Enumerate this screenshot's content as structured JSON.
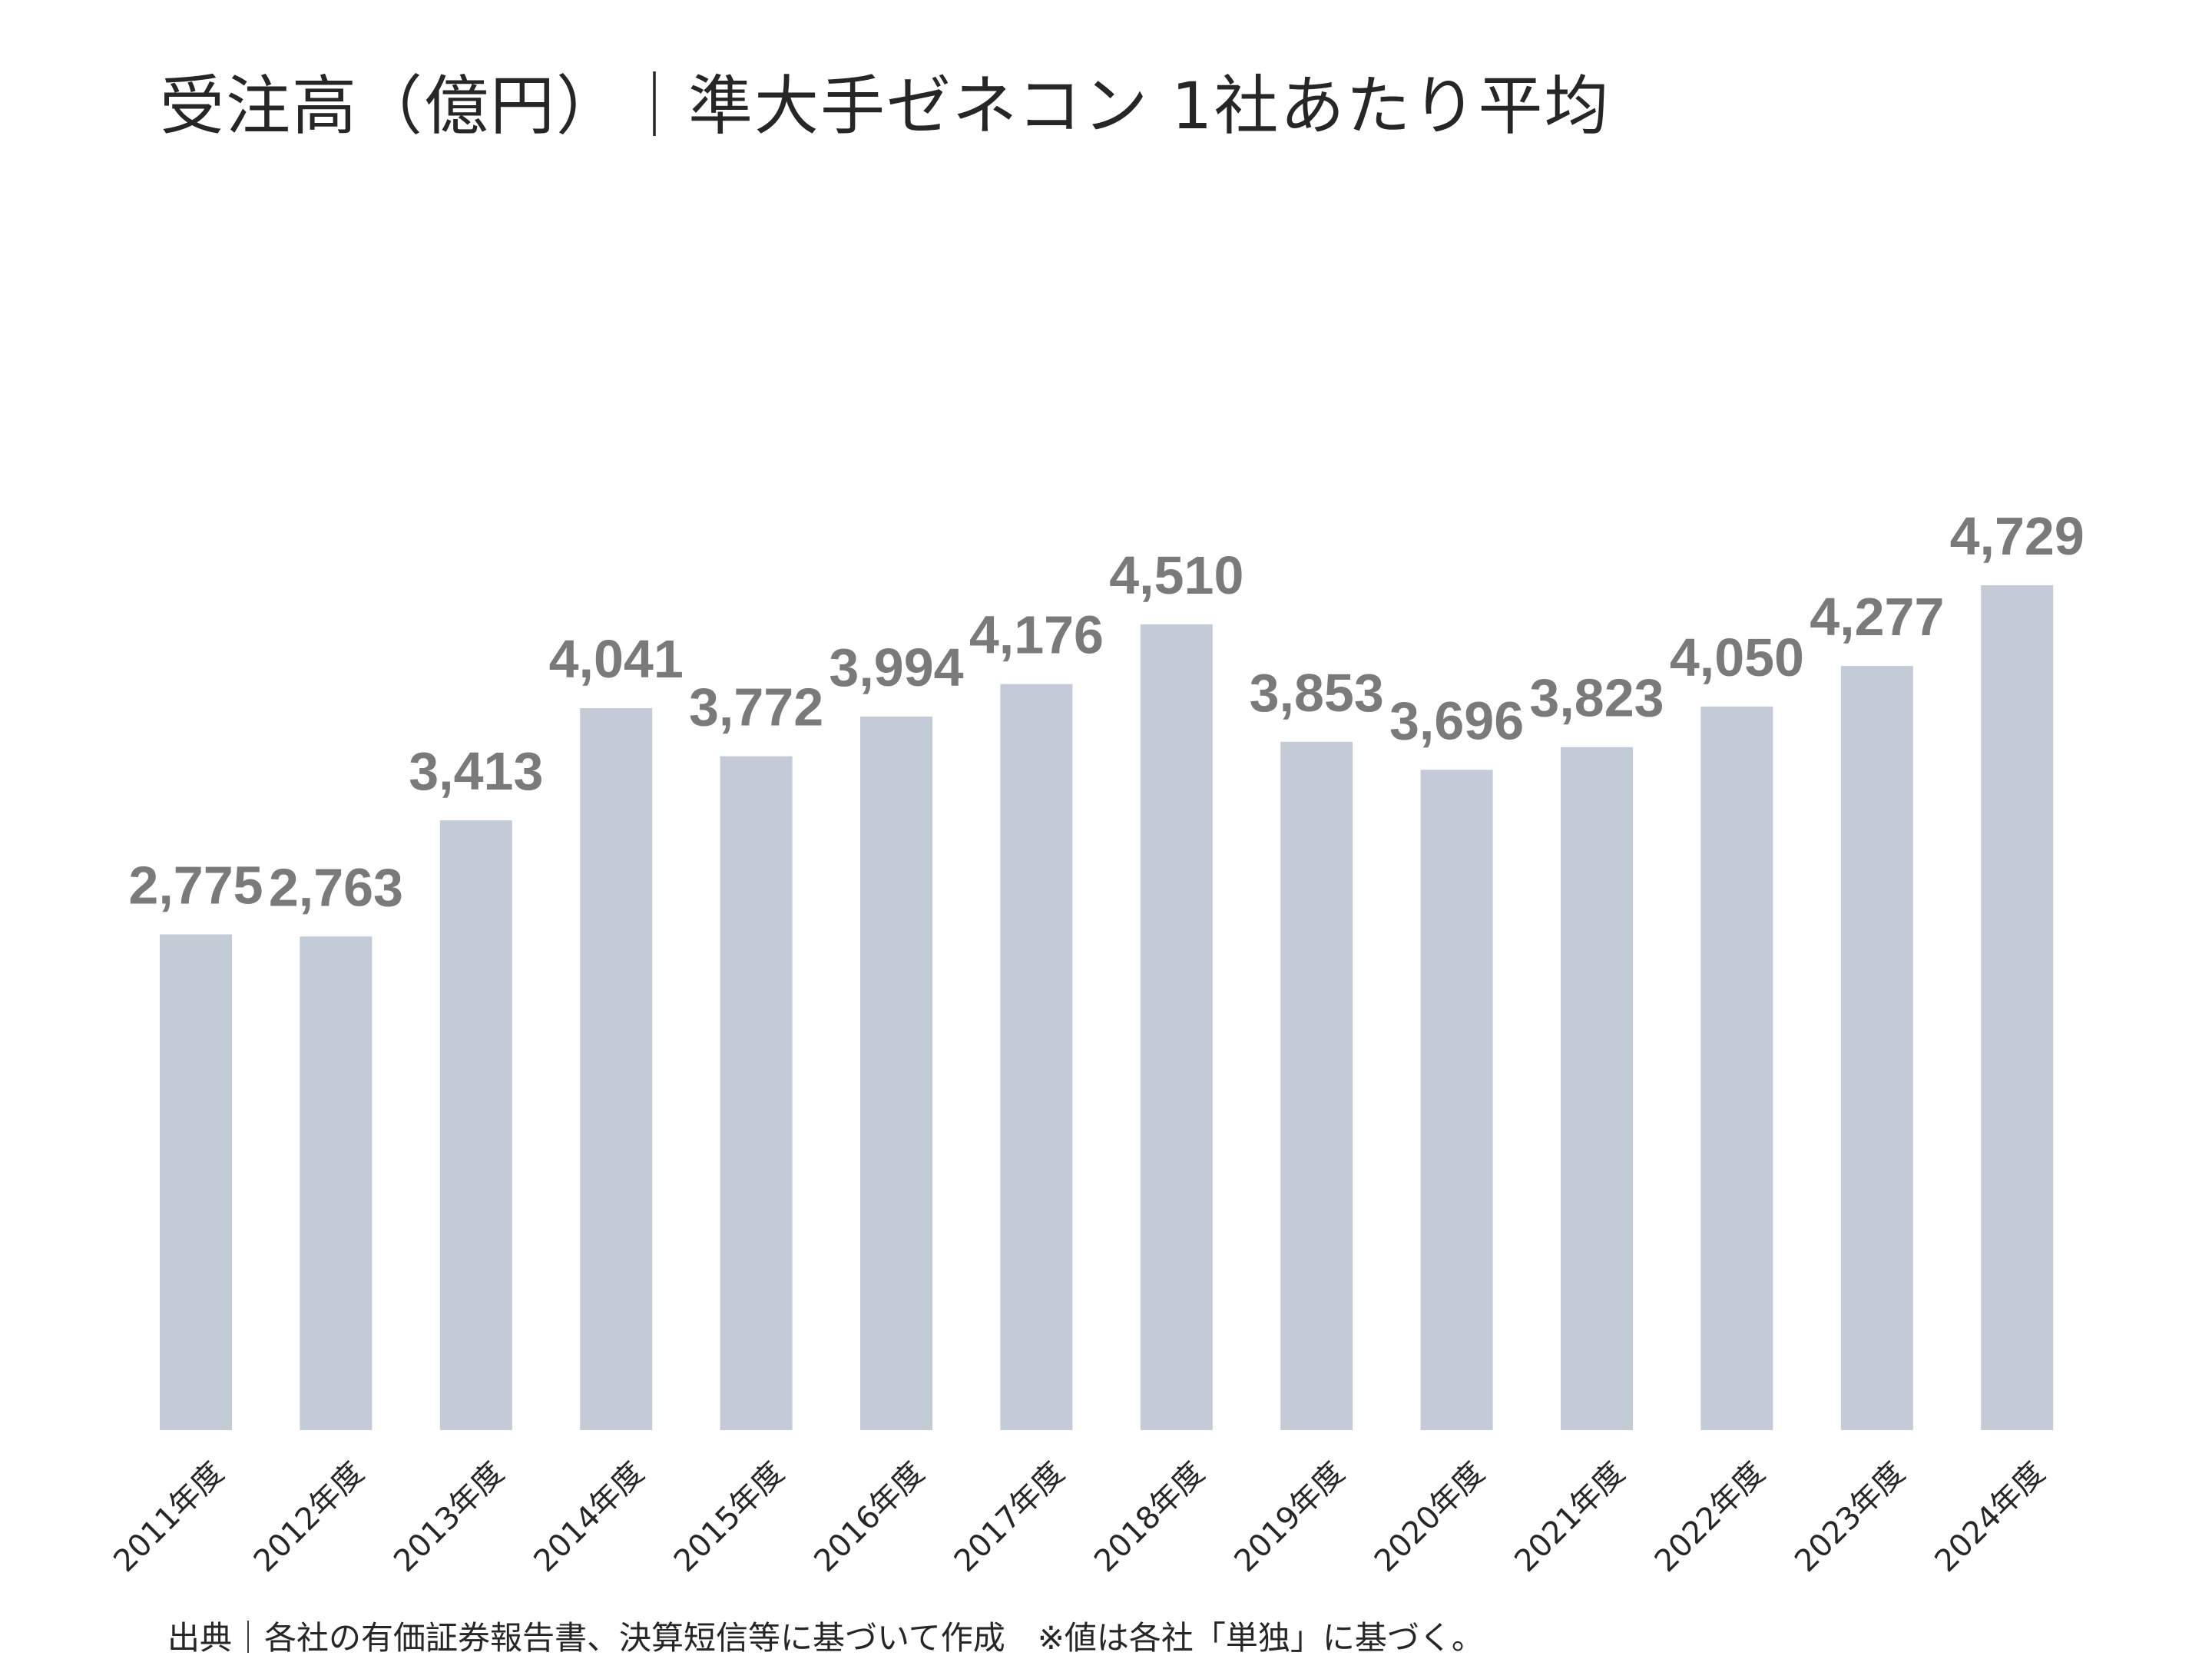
{
  "chart_data": {
    "type": "bar",
    "title": "受注高（億円）｜準大手ゼネコン 1社あたり平均",
    "xlabel": "",
    "ylabel": "",
    "categories": [
      "2011年度",
      "2012年度",
      "2013年度",
      "2014年度",
      "2015年度",
      "2016年度",
      "2017年度",
      "2018年度",
      "2019年度",
      "2020年度",
      "2021年度",
      "2022年度",
      "2023年度",
      "2024年度"
    ],
    "values": [
      2775,
      2763,
      3413,
      4041,
      3772,
      3994,
      4176,
      4510,
      3853,
      3696,
      3823,
      4050,
      4277,
      4729
    ],
    "value_labels": [
      "2,775",
      "2,763",
      "3,413",
      "4,041",
      "3,772",
      "3,994",
      "4,176",
      "4,510",
      "3,853",
      "3,696",
      "3,823",
      "4,050",
      "4,277",
      "4,729"
    ],
    "ylim": [
      0,
      4729
    ],
    "grid": false,
    "legend": "none",
    "bar_color": "#c2cbd6",
    "label_color": "#7a7a7a"
  },
  "footer": {
    "source_text": "出典｜各社の有価証券報告書、決算短信等に基づいて作成　※値は各社「単独」に基づく。"
  }
}
